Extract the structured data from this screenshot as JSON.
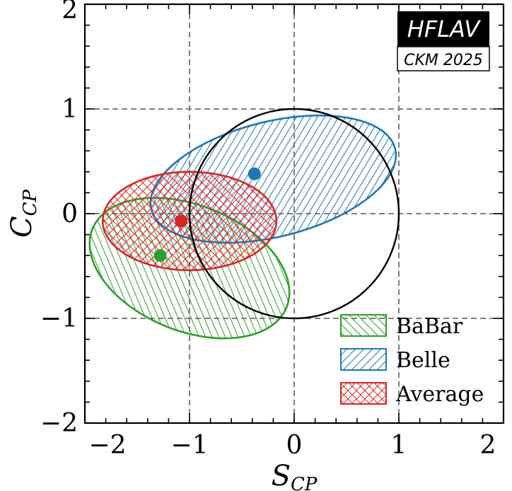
{
  "chart_data": {
    "type": "scatter",
    "title": "",
    "xlabel": {
      "main": "S",
      "sub": "CP"
    },
    "ylabel": {
      "main": "C",
      "sub": "CP"
    },
    "xlim": [
      -2,
      2
    ],
    "ylim": [
      -2,
      2
    ],
    "grid": "dashed at ±1 and 0",
    "legend_position": "bottom-right",
    "x_ticks": [
      {
        "value": -2,
        "label": "−2"
      },
      {
        "value": -1,
        "label": "−1"
      },
      {
        "value": 0,
        "label": "0"
      },
      {
        "value": 1,
        "label": "1"
      },
      {
        "value": 2,
        "label": "2"
      }
    ],
    "y_ticks": [
      {
        "value": -2,
        "label": "−2"
      },
      {
        "value": -1,
        "label": "−1"
      },
      {
        "value": 0,
        "label": "0"
      },
      {
        "value": 1,
        "label": "1"
      },
      {
        "value": 2,
        "label": "2"
      }
    ],
    "physical_boundary": {
      "center": [
        0,
        0
      ],
      "radius": 1,
      "color": "#000000"
    },
    "series": [
      {
        "name": "BaBar",
        "color": "#2ca02c",
        "hatch": "backslash",
        "central_value": {
          "x": -1.28,
          "y": -0.4
        },
        "contour": {
          "cx": -1.0,
          "cy": -0.52,
          "rx": 1.0,
          "ry": 0.6,
          "rotation_deg": -22
        }
      },
      {
        "name": "Belle",
        "color": "#1f77b4",
        "hatch": "slash",
        "central_value": {
          "x": -0.38,
          "y": 0.38
        },
        "contour": {
          "cx": -0.2,
          "cy": 0.33,
          "rx": 1.2,
          "ry": 0.55,
          "rotation_deg": 14
        }
      },
      {
        "name": "Average",
        "color": "#d62728",
        "hatch": "cross",
        "central_value": {
          "x": -1.08,
          "y": -0.07
        },
        "contour": {
          "cx": -1.0,
          "cy": -0.07,
          "rx": 0.83,
          "ry": 0.47,
          "rotation_deg": 0
        }
      }
    ]
  },
  "badge": {
    "line1": "HFLAV",
    "line2": "CKM 2025"
  }
}
